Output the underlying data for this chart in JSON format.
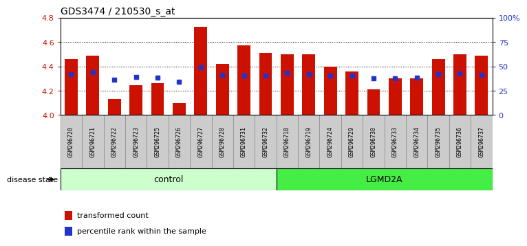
{
  "title": "GDS3474 / 210530_s_at",
  "samples": [
    "GSM296720",
    "GSM296721",
    "GSM296722",
    "GSM296723",
    "GSM296725",
    "GSM296726",
    "GSM296727",
    "GSM296728",
    "GSM296731",
    "GSM296732",
    "GSM296718",
    "GSM296719",
    "GSM296724",
    "GSM296729",
    "GSM296730",
    "GSM296733",
    "GSM296734",
    "GSM296735",
    "GSM296736",
    "GSM296737"
  ],
  "transformed_counts": [
    4.46,
    4.49,
    4.13,
    4.245,
    4.265,
    4.1,
    4.725,
    4.42,
    4.575,
    4.51,
    4.5,
    4.5,
    4.4,
    4.36,
    4.21,
    4.3,
    4.3,
    4.46,
    4.5,
    4.49
  ],
  "percentile_ranks": [
    4.335,
    4.355,
    4.29,
    4.315,
    4.305,
    4.275,
    4.39,
    4.33,
    4.325,
    4.325,
    4.345,
    4.335,
    4.325,
    4.325,
    4.3,
    4.3,
    4.31,
    4.335,
    4.34,
    4.33
  ],
  "bar_color": "#CC1100",
  "dot_color": "#2233CC",
  "ylim_left": [
    4.0,
    4.8
  ],
  "ylim_right": [
    0,
    100
  ],
  "yticks_left": [
    4.0,
    4.2,
    4.4,
    4.6,
    4.8
  ],
  "yticks_right": [
    0,
    25,
    50,
    75,
    100
  ],
  "ytick_labels_right": [
    "0",
    "25",
    "50",
    "75",
    "100%"
  ],
  "n_control": 10,
  "n_lgmd": 10,
  "control_label": "control",
  "lgmd_label": "LGMD2A",
  "disease_state_label": "disease state",
  "legend_bar_label": "transformed count",
  "legend_dot_label": "percentile rank within the sample",
  "control_color": "#CCFFCC",
  "lgmd_color": "#44EE44",
  "background_color": "#FFFFFF",
  "plot_bg_color": "#FFFFFF",
  "tick_label_bg": "#CCCCCC",
  "bar_width": 0.6
}
